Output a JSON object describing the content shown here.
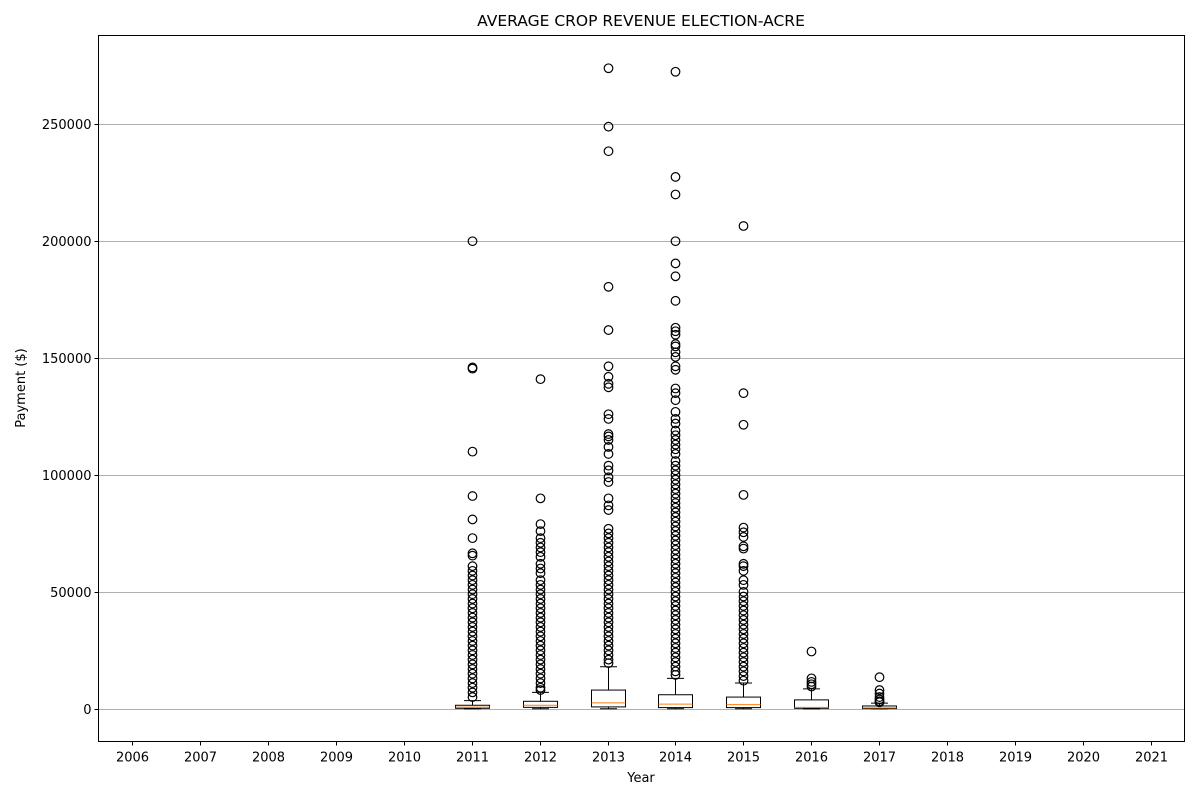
{
  "chart_data": {
    "type": "box",
    "title": "AVERAGE CROP REVENUE ELECTION-ACRE",
    "xlabel": "Year",
    "ylabel": "Payment ($)",
    "categories": [
      "2006",
      "2007",
      "2008",
      "2009",
      "2010",
      "2011",
      "2012",
      "2013",
      "2014",
      "2015",
      "2016",
      "2017",
      "2018",
      "2019",
      "2020",
      "2021"
    ],
    "ylim": [
      -14000,
      288000
    ],
    "yticks": [
      0,
      50000,
      100000,
      150000,
      200000,
      250000
    ],
    "grid": "horizontal",
    "colors": {
      "box": "#000000",
      "median": "#ff7f0e",
      "grid": "#b0b0b0"
    },
    "boxes": [
      {
        "category": "2011",
        "q1": 200,
        "median": 700,
        "q3": 1500,
        "whisker_low": 0,
        "whisker_high": 3500,
        "outliers": [
          200000,
          146000,
          145500,
          110000,
          91000,
          81000,
          73000,
          66500,
          65500,
          61000,
          59000,
          57000,
          55000,
          53000,
          51000,
          49000,
          47000,
          45000,
          43000,
          41000,
          39000,
          37000,
          35000,
          33000,
          31000,
          29000,
          27000,
          25000,
          23000,
          21000,
          19000,
          17000,
          15000,
          13000,
          11000,
          9000,
          7000,
          5000
        ]
      },
      {
        "category": "2012",
        "q1": 600,
        "median": 1500,
        "q3": 3200,
        "whisker_low": 0,
        "whisker_high": 7000,
        "outliers": [
          141000,
          90000,
          79000,
          76000,
          73000,
          71000,
          69000,
          67000,
          65000,
          62000,
          60000,
          58000,
          55000,
          53000,
          51000,
          49000,
          47000,
          45000,
          43000,
          41000,
          39000,
          37000,
          35000,
          33000,
          31000,
          29000,
          27000,
          25000,
          23000,
          21000,
          19000,
          17000,
          15000,
          13000,
          11000,
          9000,
          8000
        ]
      },
      {
        "category": "2013",
        "q1": 800,
        "median": 2500,
        "q3": 8000,
        "whisker_low": 0,
        "whisker_high": 18000,
        "outliers": [
          274000,
          249000,
          238500,
          180500,
          162000,
          146500,
          142000,
          139000,
          137500,
          126000,
          124000,
          117500,
          116500,
          115000,
          112000,
          109000,
          104000,
          102000,
          99000,
          97000,
          90000,
          87000,
          85000,
          77000,
          75000,
          73000,
          71000,
          69000,
          67000,
          65000,
          63000,
          61000,
          59000,
          57000,
          55000,
          53000,
          51000,
          49000,
          47000,
          45000,
          43000,
          41000,
          39000,
          37000,
          35000,
          33000,
          31000,
          29000,
          27000,
          25000,
          23000,
          21000,
          19500
        ]
      },
      {
        "category": "2014",
        "q1": 500,
        "median": 2000,
        "q3": 6000,
        "whisker_low": 0,
        "whisker_high": 13000,
        "outliers": [
          272500,
          227500,
          220000,
          200000,
          190500,
          185000,
          174500,
          163000,
          161500,
          160000,
          156000,
          155000,
          152500,
          150500,
          146500,
          145000,
          137000,
          135000,
          132000,
          127000,
          124000,
          122000,
          119000,
          117000,
          115000,
          113000,
          111000,
          109000,
          106000,
          104000,
          102000,
          100000,
          98000,
          96000,
          94000,
          92000,
          90000,
          88000,
          86000,
          84000,
          82000,
          80000,
          78000,
          76000,
          74000,
          72000,
          70000,
          68000,
          66000,
          64000,
          62000,
          60000,
          58000,
          56000,
          54000,
          52000,
          50000,
          48000,
          46000,
          44000,
          42000,
          40000,
          38000,
          36000,
          34000,
          32000,
          30000,
          28000,
          26000,
          24000,
          22000,
          20000,
          18000,
          16000,
          14500
        ]
      },
      {
        "category": "2015",
        "q1": 500,
        "median": 1800,
        "q3": 5000,
        "whisker_low": 0,
        "whisker_high": 11000,
        "outliers": [
          206500,
          135000,
          121500,
          91500,
          77500,
          75500,
          73500,
          69500,
          68500,
          62000,
          61000,
          59000,
          55000,
          53000,
          50000,
          48000,
          46000,
          44000,
          42000,
          40000,
          38000,
          36000,
          34000,
          32000,
          30000,
          28000,
          26000,
          24000,
          22000,
          20000,
          18000,
          16000,
          14000,
          12000
        ]
      },
      {
        "category": "2016",
        "q1": 200,
        "median": 600,
        "q3": 3800,
        "whisker_low": 0,
        "whisker_high": 8500,
        "outliers": [
          24500,
          13000,
          11500,
          10500,
          9500
        ]
      },
      {
        "category": "2017",
        "q1": 100,
        "median": 400,
        "q3": 1200,
        "whisker_low": 0,
        "whisker_high": 2400,
        "outliers": [
          13500,
          8000,
          6500,
          5000,
          4000,
          3200,
          2800
        ]
      }
    ]
  }
}
